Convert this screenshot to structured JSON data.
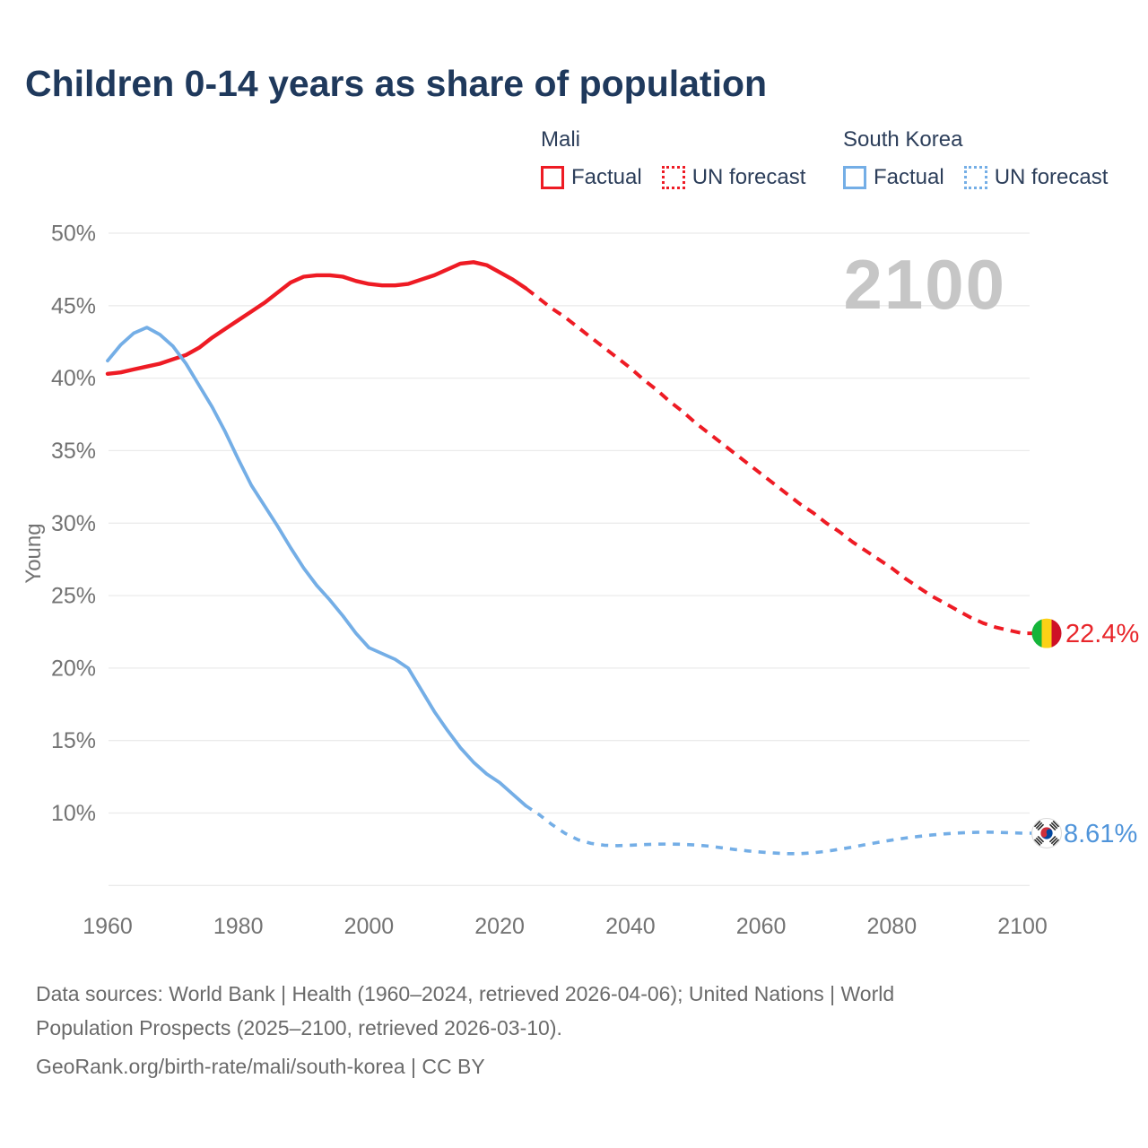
{
  "title": "Children 0-14 years as share of population",
  "watermark": "2100",
  "legend": {
    "groups": [
      {
        "name": "Mali",
        "color": "#ee1b24",
        "items": [
          {
            "label": "Factual",
            "style": "solid"
          },
          {
            "label": "UN forecast",
            "style": "dotted"
          }
        ]
      },
      {
        "name": "South Korea",
        "color": "#74aee6",
        "items": [
          {
            "label": "Factual",
            "style": "solid"
          },
          {
            "label": "UN forecast",
            "style": "dotted"
          }
        ]
      }
    ]
  },
  "y_axis": {
    "label": "Young",
    "ticks": [
      "50%",
      "45%",
      "40%",
      "35%",
      "30%",
      "25%",
      "20%",
      "15%",
      "10%"
    ]
  },
  "x_axis": {
    "ticks": [
      "1960",
      "1980",
      "2000",
      "2020",
      "2040",
      "2060",
      "2080",
      "2100"
    ]
  },
  "endpoints": {
    "mali": {
      "label": "22.4%",
      "value": 22.4,
      "year": 2100,
      "flag": "mali-flag"
    },
    "south_korea": {
      "label": "8.61%",
      "value": 8.61,
      "year": 2100,
      "flag": "south-korea-flag"
    }
  },
  "footer": {
    "line1": "Data sources: World Bank | Health (1960–2024, retrieved 2026-04-06); United Nations | World",
    "line2": "Population Prospects (2025–2100, retrieved 2026-03-10).",
    "line3": "GeoRank.org/birth-rate/mali/south-korea | CC BY"
  },
  "chart_data": {
    "type": "line",
    "title": "Children 0-14 years as share of population",
    "xlabel": "",
    "ylabel": "Young",
    "xlim": [
      1960,
      2100
    ],
    "ylim": [
      5,
      50
    ],
    "grid": true,
    "legend_position": "top-right",
    "colors": {
      "mali": "#ee1b24",
      "south_korea": "#74aee6",
      "mali_label": "#e8262b",
      "south_korea_label": "#4f94da",
      "gridline": "#ebebeb",
      "axis_text": "#737373",
      "watermark": "#c6c6c6"
    },
    "series": [
      {
        "name": "Mali Factual",
        "style": "solid",
        "color": "#ee1b24",
        "points": [
          [
            1960,
            40.3
          ],
          [
            1962,
            40.4
          ],
          [
            1964,
            40.6
          ],
          [
            1966,
            40.8
          ],
          [
            1968,
            41.0
          ],
          [
            1970,
            41.3
          ],
          [
            1972,
            41.6
          ],
          [
            1974,
            42.1
          ],
          [
            1976,
            42.8
          ],
          [
            1978,
            43.4
          ],
          [
            1980,
            44.0
          ],
          [
            1982,
            44.6
          ],
          [
            1984,
            45.2
          ],
          [
            1986,
            45.9
          ],
          [
            1988,
            46.6
          ],
          [
            1990,
            47.0
          ],
          [
            1992,
            47.1
          ],
          [
            1994,
            47.1
          ],
          [
            1996,
            47.0
          ],
          [
            1998,
            46.7
          ],
          [
            2000,
            46.5
          ],
          [
            2002,
            46.4
          ],
          [
            2004,
            46.4
          ],
          [
            2006,
            46.5
          ],
          [
            2008,
            46.8
          ],
          [
            2010,
            47.1
          ],
          [
            2012,
            47.5
          ],
          [
            2014,
            47.9
          ],
          [
            2016,
            48.0
          ],
          [
            2018,
            47.8
          ],
          [
            2020,
            47.3
          ],
          [
            2022,
            46.8
          ],
          [
            2024,
            46.2
          ]
        ]
      },
      {
        "name": "Mali UN forecast",
        "style": "dashed",
        "color": "#ee1b24",
        "points": [
          [
            2024,
            46.2
          ],
          [
            2026,
            45.5
          ],
          [
            2028,
            44.8
          ],
          [
            2030,
            44.2
          ],
          [
            2032,
            43.5
          ],
          [
            2034,
            42.8
          ],
          [
            2036,
            42.1
          ],
          [
            2038,
            41.4
          ],
          [
            2040,
            40.7
          ],
          [
            2042,
            39.9
          ],
          [
            2044,
            39.2
          ],
          [
            2046,
            38.4
          ],
          [
            2048,
            37.7
          ],
          [
            2050,
            36.9
          ],
          [
            2052,
            36.2
          ],
          [
            2054,
            35.5
          ],
          [
            2056,
            34.8
          ],
          [
            2058,
            34.1
          ],
          [
            2060,
            33.4
          ],
          [
            2062,
            32.7
          ],
          [
            2064,
            32.0
          ],
          [
            2066,
            31.3
          ],
          [
            2068,
            30.7
          ],
          [
            2070,
            30.0
          ],
          [
            2072,
            29.4
          ],
          [
            2074,
            28.7
          ],
          [
            2076,
            28.1
          ],
          [
            2078,
            27.5
          ],
          [
            2080,
            26.9
          ],
          [
            2082,
            26.2
          ],
          [
            2084,
            25.6
          ],
          [
            2086,
            25.0
          ],
          [
            2088,
            24.5
          ],
          [
            2090,
            24.0
          ],
          [
            2092,
            23.5
          ],
          [
            2094,
            23.1
          ],
          [
            2096,
            22.8
          ],
          [
            2098,
            22.6
          ],
          [
            2100,
            22.4
          ]
        ]
      },
      {
        "name": "South Korea Factual",
        "style": "solid",
        "color": "#74aee6",
        "points": [
          [
            1960,
            41.2
          ],
          [
            1962,
            42.3
          ],
          [
            1964,
            43.1
          ],
          [
            1966,
            43.5
          ],
          [
            1968,
            43.0
          ],
          [
            1970,
            42.2
          ],
          [
            1972,
            41.0
          ],
          [
            1974,
            39.5
          ],
          [
            1976,
            38.0
          ],
          [
            1978,
            36.3
          ],
          [
            1980,
            34.4
          ],
          [
            1982,
            32.6
          ],
          [
            1984,
            31.2
          ],
          [
            1986,
            29.8
          ],
          [
            1988,
            28.3
          ],
          [
            1990,
            26.9
          ],
          [
            1992,
            25.7
          ],
          [
            1994,
            24.7
          ],
          [
            1996,
            23.6
          ],
          [
            1998,
            22.4
          ],
          [
            2000,
            21.4
          ],
          [
            2002,
            21.0
          ],
          [
            2004,
            20.6
          ],
          [
            2006,
            20.0
          ],
          [
            2008,
            18.5
          ],
          [
            2010,
            17.0
          ],
          [
            2012,
            15.7
          ],
          [
            2014,
            14.5
          ],
          [
            2016,
            13.5
          ],
          [
            2018,
            12.7
          ],
          [
            2020,
            12.1
          ],
          [
            2022,
            11.3
          ],
          [
            2024,
            10.5
          ]
        ]
      },
      {
        "name": "South Korea UN forecast",
        "style": "dashed",
        "color": "#74aee6",
        "points": [
          [
            2024,
            10.5
          ],
          [
            2026,
            9.9
          ],
          [
            2028,
            9.2
          ],
          [
            2030,
            8.6
          ],
          [
            2032,
            8.15
          ],
          [
            2034,
            7.9
          ],
          [
            2036,
            7.78
          ],
          [
            2038,
            7.75
          ],
          [
            2040,
            7.78
          ],
          [
            2042,
            7.82
          ],
          [
            2044,
            7.85
          ],
          [
            2046,
            7.86
          ],
          [
            2048,
            7.84
          ],
          [
            2050,
            7.8
          ],
          [
            2052,
            7.72
          ],
          [
            2054,
            7.6
          ],
          [
            2056,
            7.48
          ],
          [
            2058,
            7.38
          ],
          [
            2060,
            7.3
          ],
          [
            2062,
            7.24
          ],
          [
            2064,
            7.2
          ],
          [
            2066,
            7.2
          ],
          [
            2068,
            7.26
          ],
          [
            2070,
            7.36
          ],
          [
            2072,
            7.5
          ],
          [
            2074,
            7.65
          ],
          [
            2076,
            7.82
          ],
          [
            2078,
            7.98
          ],
          [
            2080,
            8.13
          ],
          [
            2082,
            8.27
          ],
          [
            2084,
            8.38
          ],
          [
            2086,
            8.48
          ],
          [
            2088,
            8.56
          ],
          [
            2090,
            8.62
          ],
          [
            2092,
            8.66
          ],
          [
            2094,
            8.68
          ],
          [
            2096,
            8.67
          ],
          [
            2098,
            8.64
          ],
          [
            2100,
            8.61
          ]
        ]
      }
    ]
  }
}
